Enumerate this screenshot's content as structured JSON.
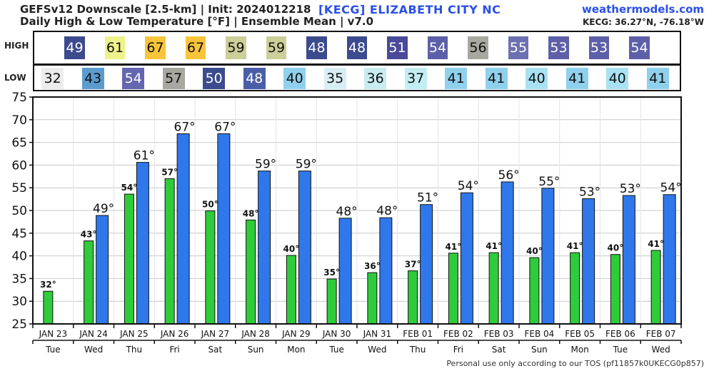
{
  "header": {
    "title_line1": "GEFSv12 Downscale [2.5-km] | Init: 2024012218",
    "title_line2": "Daily High & Low Temperature [°F] | Ensemble Mean | v7.0",
    "station": "[KECG]   ELIZABETH CITY  NC",
    "site": "weathermodels.com",
    "coords": "KECG: 36.27°N, -76.18°W"
  },
  "strip": {
    "high_label": "HIGH",
    "low_label": "LOW",
    "high_colors": [
      "#3c4a8e",
      "#eef28a",
      "#f8c43a",
      "#f8c43a",
      "#cbcf98",
      "#cbcf98",
      "#3c4a8e",
      "#3c4a8e",
      "#4a4a9a",
      "#5d5fa8",
      "#a8a8a0",
      "#6d70b0",
      "#5d5fa8",
      "#5d5fa8",
      "#5d5fa8"
    ],
    "low_colors": [
      "#ececec",
      "#5b9bd0",
      "#6466b0",
      "#a8a8a0",
      "#3c4a8e",
      "#4a5ea8",
      "#8fd0ec",
      "#d8eef4",
      "#c8ecf0",
      "#c2eef2",
      "#8fd0ec",
      "#8fd0ec",
      "#a8e2f2",
      "#8fd0ec",
      "#a8e2f2",
      "#8fd0ec"
    ]
  },
  "chart_data": {
    "type": "bar",
    "categories": [
      "JAN 23",
      "JAN 24",
      "JAN 25",
      "JAN 26",
      "JAN 27",
      "JAN 28",
      "JAN 29",
      "JAN 30",
      "JAN 31",
      "FEB 01",
      "FEB 02",
      "FEB 03",
      "FEB 04",
      "FEB 05",
      "FEB 06",
      "FEB 07"
    ],
    "weekdays": [
      "Tue",
      "Wed",
      "Thu",
      "Fri",
      "Sat",
      "Sun",
      "Mon",
      "Tue",
      "Wed",
      "Thu",
      "Fri",
      "Sat",
      "Sun",
      "Mon",
      "Tue",
      "Wed"
    ],
    "series": [
      {
        "name": "HIGH",
        "color": "#2f78ec",
        "values": [
          null,
          49,
          61,
          67,
          67,
          59,
          59,
          48,
          48,
          51,
          54,
          56,
          55,
          53,
          53,
          54
        ],
        "labels": [
          "",
          "49°",
          "61°",
          "67°",
          "67°",
          "59°",
          "59°",
          "48°",
          "48°",
          "51°",
          "54°",
          "56°",
          "55°",
          "53°",
          "53°",
          "54°"
        ]
      },
      {
        "name": "LOW",
        "color": "#2ecc3a",
        "values": [
          32,
          43,
          54,
          57,
          50,
          48,
          40,
          35,
          36,
          37,
          41,
          41,
          40,
          41,
          40,
          41
        ],
        "labels": [
          "32°",
          "43°",
          "54°",
          "57°",
          "50°",
          "48°",
          "40°",
          "35°",
          "36°",
          "37°",
          "41°",
          "41°",
          "40°",
          "41°",
          "40°",
          "41°"
        ]
      }
    ],
    "high_exact": [
      null,
      48.9,
      60.6,
      66.9,
      66.9,
      58.7,
      58.7,
      48.3,
      48.4,
      51.3,
      53.9,
      56.3,
      54.9,
      52.6,
      53.3,
      53.5
    ],
    "low_exact": [
      32.2,
      43.3,
      53.6,
      57.0,
      49.9,
      47.9,
      40.1,
      34.9,
      36.3,
      36.7,
      40.6,
      40.7,
      39.6,
      40.7,
      40.3,
      41.2
    ],
    "yticks": [
      25,
      30,
      35,
      40,
      45,
      50,
      55,
      60,
      65,
      70,
      75
    ],
    "ylim": [
      25,
      75
    ],
    "grid": true,
    "footer": "Personal use only according to our TOS (pf11857k0UKECG0p857)"
  }
}
